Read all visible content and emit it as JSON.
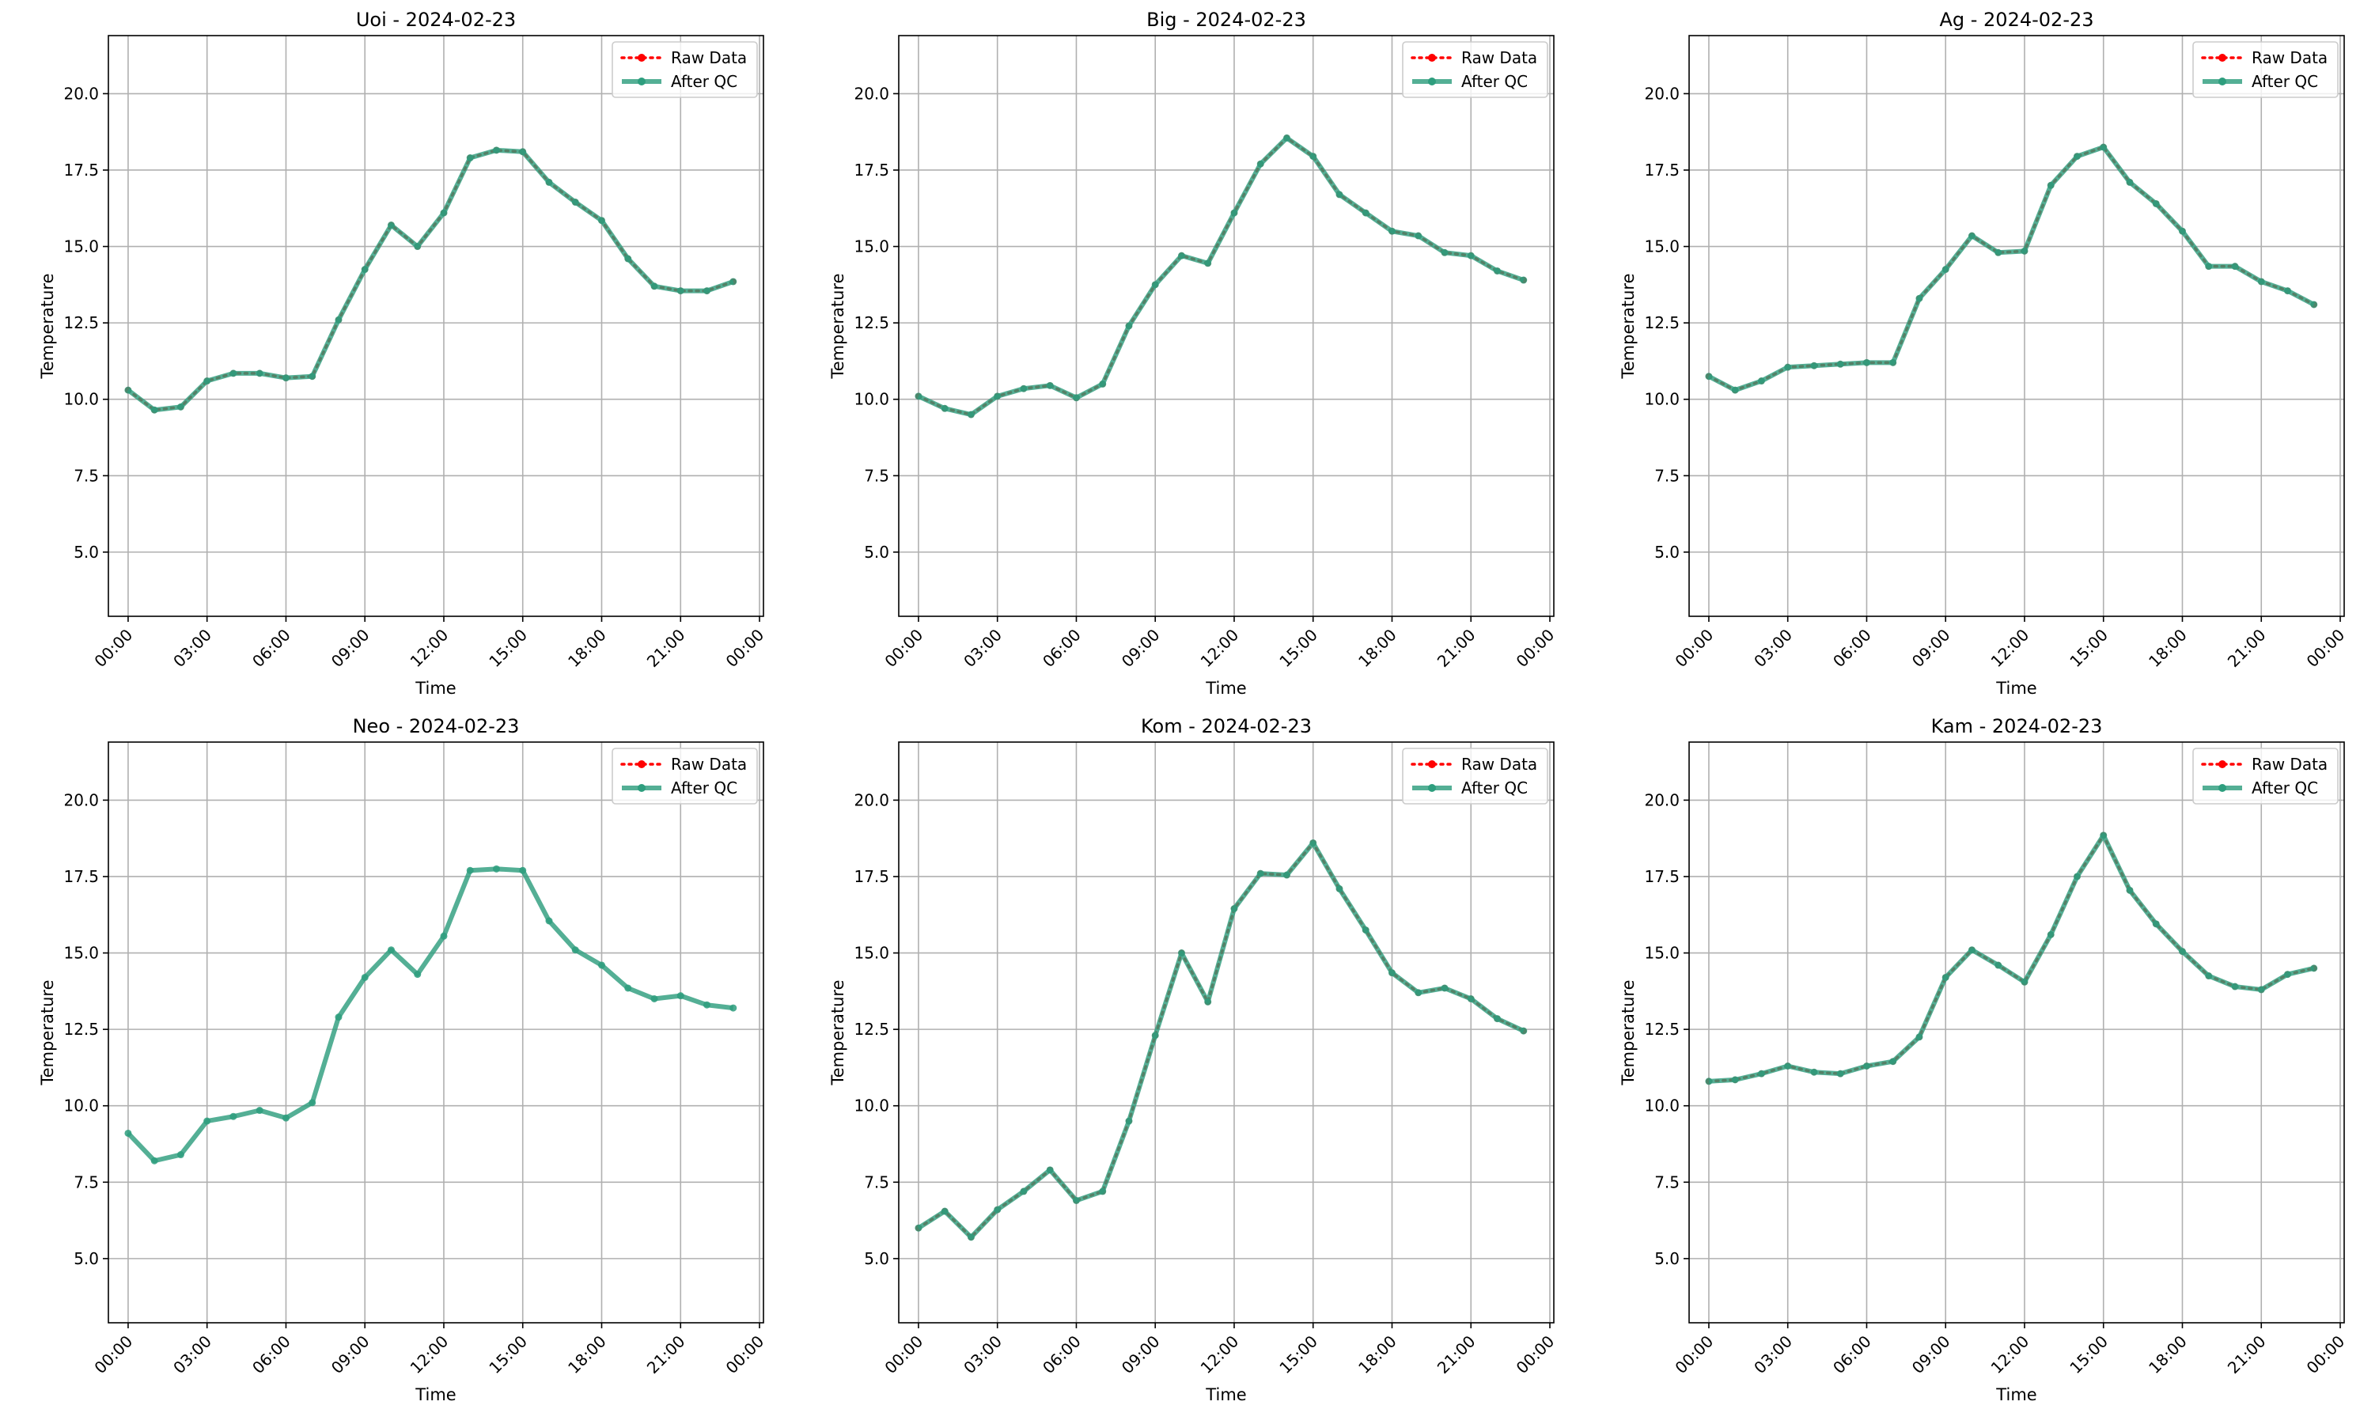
{
  "legend": {
    "raw_label": "Raw Data",
    "qc_label": "After QC"
  },
  "colors": {
    "raw": "#ff0000",
    "qc": "#2e9e7e",
    "grid": "#b0b0b0",
    "axis": "#000000"
  },
  "chart_data": [
    {
      "type": "line",
      "title": "Uoi - 2024-02-23",
      "xlabel": "Time",
      "ylabel": "Temperature",
      "xlim": [
        -0.75,
        24.15
      ],
      "ylim": [
        2.9,
        21.9
      ],
      "xticks": [
        0,
        3,
        6,
        9,
        12,
        15,
        18,
        21,
        24
      ],
      "xtick_labels": [
        "00:00",
        "03:00",
        "06:00",
        "09:00",
        "12:00",
        "15:00",
        "18:00",
        "21:00",
        "00:00"
      ],
      "yticks": [
        5.0,
        7.5,
        10.0,
        12.5,
        15.0,
        17.5,
        20.0
      ],
      "ytick_labels": [
        "5.0",
        "7.5",
        "10.0",
        "12.5",
        "15.0",
        "17.5",
        "20.0"
      ],
      "grid": true,
      "legend_position": "upper right",
      "x": [
        0,
        1,
        2,
        3,
        4,
        5,
        6,
        7,
        8,
        9,
        10,
        11,
        12,
        13,
        14,
        15,
        16,
        17,
        18,
        19,
        20,
        21,
        22,
        23
      ],
      "series": [
        {
          "name": "Raw Data",
          "values": [
            10.3,
            9.65,
            9.75,
            10.6,
            10.85,
            10.85,
            10.7,
            10.75,
            12.6,
            14.25,
            15.7,
            15.0,
            16.1,
            17.9,
            18.15,
            18.1,
            17.1,
            16.45,
            15.85,
            14.6,
            13.7,
            13.55,
            13.55,
            13.85
          ]
        },
        {
          "name": "After QC",
          "values": [
            10.3,
            9.65,
            9.75,
            10.6,
            10.85,
            10.85,
            10.7,
            10.75,
            12.6,
            14.25,
            15.7,
            15.0,
            16.1,
            17.9,
            18.15,
            18.1,
            17.1,
            16.45,
            15.85,
            14.6,
            13.7,
            13.55,
            13.55,
            13.85
          ]
        }
      ]
    },
    {
      "type": "line",
      "title": "Big - 2024-02-23",
      "xlabel": "Time",
      "ylabel": "Temperature",
      "xlim": [
        -0.75,
        24.15
      ],
      "ylim": [
        2.9,
        21.9
      ],
      "xticks": [
        0,
        3,
        6,
        9,
        12,
        15,
        18,
        21,
        24
      ],
      "xtick_labels": [
        "00:00",
        "03:00",
        "06:00",
        "09:00",
        "12:00",
        "15:00",
        "18:00",
        "21:00",
        "00:00"
      ],
      "yticks": [
        5.0,
        7.5,
        10.0,
        12.5,
        15.0,
        17.5,
        20.0
      ],
      "ytick_labels": [
        "5.0",
        "7.5",
        "10.0",
        "12.5",
        "15.0",
        "17.5",
        "20.0"
      ],
      "grid": true,
      "legend_position": "upper right",
      "x": [
        0,
        1,
        2,
        3,
        4,
        5,
        6,
        7,
        8,
        9,
        10,
        11,
        12,
        13,
        14,
        15,
        16,
        17,
        18,
        19,
        20,
        21,
        22,
        23
      ],
      "series": [
        {
          "name": "Raw Data",
          "values": [
            10.1,
            9.7,
            9.5,
            10.1,
            10.35,
            10.45,
            10.05,
            10.5,
            12.4,
            13.75,
            14.7,
            14.45,
            16.1,
            17.7,
            18.55,
            17.95,
            16.7,
            16.1,
            15.5,
            15.35,
            14.8,
            14.7,
            14.2,
            13.9
          ]
        },
        {
          "name": "After QC",
          "values": [
            10.1,
            9.7,
            9.5,
            10.1,
            10.35,
            10.45,
            10.05,
            10.5,
            12.4,
            13.75,
            14.7,
            14.45,
            16.1,
            17.7,
            18.55,
            17.95,
            16.7,
            16.1,
            15.5,
            15.35,
            14.8,
            14.7,
            14.2,
            13.9
          ]
        }
      ]
    },
    {
      "type": "line",
      "title": "Ag - 2024-02-23",
      "xlabel": "Time",
      "ylabel": "Temperature",
      "xlim": [
        -0.75,
        24.15
      ],
      "ylim": [
        2.9,
        21.9
      ],
      "xticks": [
        0,
        3,
        6,
        9,
        12,
        15,
        18,
        21,
        24
      ],
      "xtick_labels": [
        "00:00",
        "03:00",
        "06:00",
        "09:00",
        "12:00",
        "15:00",
        "18:00",
        "21:00",
        "00:00"
      ],
      "yticks": [
        5.0,
        7.5,
        10.0,
        12.5,
        15.0,
        17.5,
        20.0
      ],
      "ytick_labels": [
        "5.0",
        "7.5",
        "10.0",
        "12.5",
        "15.0",
        "17.5",
        "20.0"
      ],
      "grid": true,
      "legend_position": "upper right",
      "x": [
        0,
        1,
        2,
        3,
        4,
        5,
        6,
        7,
        8,
        9,
        10,
        11,
        12,
        13,
        14,
        15,
        16,
        17,
        18,
        19,
        20,
        21,
        22,
        23
      ],
      "series": [
        {
          "name": "Raw Data",
          "values": [
            10.75,
            10.3,
            10.6,
            11.05,
            11.1,
            11.15,
            11.2,
            11.2,
            13.3,
            14.25,
            15.35,
            14.8,
            14.85,
            17.0,
            17.95,
            18.25,
            17.1,
            16.4,
            15.5,
            14.35,
            14.35,
            13.85,
            13.55,
            13.1
          ]
        },
        {
          "name": "After QC",
          "values": [
            10.75,
            10.3,
            10.6,
            11.05,
            11.1,
            11.15,
            11.2,
            11.2,
            13.3,
            14.25,
            15.35,
            14.8,
            14.85,
            17.0,
            17.95,
            18.25,
            17.1,
            16.4,
            15.5,
            14.35,
            14.35,
            13.85,
            13.55,
            13.1
          ]
        }
      ]
    },
    {
      "type": "line",
      "title": "Neo - 2024-02-23",
      "xlabel": "Time",
      "ylabel": "Temperature",
      "xlim": [
        -0.75,
        24.15
      ],
      "ylim": [
        2.9,
        21.9
      ],
      "xticks": [
        0,
        3,
        6,
        9,
        12,
        15,
        18,
        21,
        24
      ],
      "xtick_labels": [
        "00:00",
        "03:00",
        "06:00",
        "09:00",
        "12:00",
        "15:00",
        "18:00",
        "21:00",
        "00:00"
      ],
      "yticks": [
        5.0,
        7.5,
        10.0,
        12.5,
        15.0,
        17.5,
        20.0
      ],
      "ytick_labels": [
        "5.0",
        "7.5",
        "10.0",
        "12.5",
        "15.0",
        "17.5",
        "20.0"
      ],
      "grid": true,
      "legend_position": "upper right",
      "x": [
        0,
        1,
        2,
        3,
        4,
        5,
        6,
        7,
        8,
        9,
        10,
        11,
        12,
        13,
        14,
        15,
        16,
        17,
        18,
        19,
        20,
        21,
        22,
        23
      ],
      "series": [
        {
          "name": "After QC",
          "values": [
            9.1,
            8.2,
            8.4,
            9.5,
            9.65,
            9.85,
            9.6,
            10.1,
            12.9,
            14.2,
            15.1,
            14.3,
            15.55,
            17.7,
            17.75,
            17.7,
            16.05,
            15.1,
            14.6,
            13.85,
            13.5,
            13.6,
            13.3,
            13.2
          ]
        }
      ]
    },
    {
      "type": "line",
      "title": "Kom - 2024-02-23",
      "xlabel": "Time",
      "ylabel": "Temperature",
      "xlim": [
        -0.75,
        24.15
      ],
      "ylim": [
        2.9,
        21.9
      ],
      "xticks": [
        0,
        3,
        6,
        9,
        12,
        15,
        18,
        21,
        24
      ],
      "xtick_labels": [
        "00:00",
        "03:00",
        "06:00",
        "09:00",
        "12:00",
        "15:00",
        "18:00",
        "21:00",
        "00:00"
      ],
      "yticks": [
        5.0,
        7.5,
        10.0,
        12.5,
        15.0,
        17.5,
        20.0
      ],
      "ytick_labels": [
        "5.0",
        "7.5",
        "10.0",
        "12.5",
        "15.0",
        "17.5",
        "20.0"
      ],
      "grid": true,
      "legend_position": "upper right",
      "x": [
        0,
        1,
        2,
        3,
        4,
        5,
        6,
        7,
        8,
        9,
        10,
        11,
        12,
        13,
        14,
        15,
        16,
        17,
        18,
        19,
        20,
        21,
        22,
        23
      ],
      "series": [
        {
          "name": "Raw Data",
          "values": [
            6.0,
            6.55,
            5.7,
            6.6,
            7.2,
            7.9,
            6.9,
            7.2,
            9.5,
            12.3,
            15.0,
            13.4,
            16.45,
            17.6,
            17.55,
            18.6,
            17.1,
            15.75,
            14.35,
            13.7,
            13.85,
            13.5,
            12.85,
            12.45
          ]
        },
        {
          "name": "After QC",
          "values": [
            6.0,
            6.55,
            5.7,
            6.6,
            7.2,
            7.9,
            6.9,
            7.2,
            9.5,
            12.3,
            15.0,
            13.4,
            16.45,
            17.6,
            17.55,
            18.6,
            17.1,
            15.75,
            14.35,
            13.7,
            13.85,
            13.5,
            12.85,
            12.45
          ]
        }
      ]
    },
    {
      "type": "line",
      "title": "Kam - 2024-02-23",
      "xlabel": "Time",
      "ylabel": "Temperature",
      "xlim": [
        -0.75,
        24.15
      ],
      "ylim": [
        2.9,
        21.9
      ],
      "xticks": [
        0,
        3,
        6,
        9,
        12,
        15,
        18,
        21,
        24
      ],
      "xtick_labels": [
        "00:00",
        "03:00",
        "06:00",
        "09:00",
        "12:00",
        "15:00",
        "18:00",
        "21:00",
        "00:00"
      ],
      "yticks": [
        5.0,
        7.5,
        10.0,
        12.5,
        15.0,
        17.5,
        20.0
      ],
      "ytick_labels": [
        "5.0",
        "7.5",
        "10.0",
        "12.5",
        "15.0",
        "17.5",
        "20.0"
      ],
      "grid": true,
      "legend_position": "upper right",
      "x": [
        0,
        1,
        2,
        3,
        4,
        5,
        6,
        7,
        8,
        9,
        10,
        11,
        12,
        13,
        14,
        15,
        16,
        17,
        18,
        19,
        20,
        21,
        22,
        23
      ],
      "series": [
        {
          "name": "Raw Data",
          "values": [
            10.8,
            10.85,
            11.05,
            11.3,
            11.1,
            11.05,
            11.3,
            11.45,
            12.25,
            14.2,
            15.1,
            14.6,
            14.05,
            15.6,
            17.5,
            18.85,
            17.05,
            15.95,
            15.05,
            14.25,
            13.9,
            13.8,
            14.3,
            14.5
          ]
        },
        {
          "name": "After QC",
          "values": [
            10.8,
            10.85,
            11.05,
            11.3,
            11.1,
            11.05,
            11.3,
            11.45,
            12.25,
            14.2,
            15.1,
            14.6,
            14.05,
            15.6,
            17.5,
            18.85,
            17.05,
            15.95,
            15.05,
            14.25,
            13.9,
            13.8,
            14.3,
            14.5
          ]
        }
      ]
    }
  ]
}
